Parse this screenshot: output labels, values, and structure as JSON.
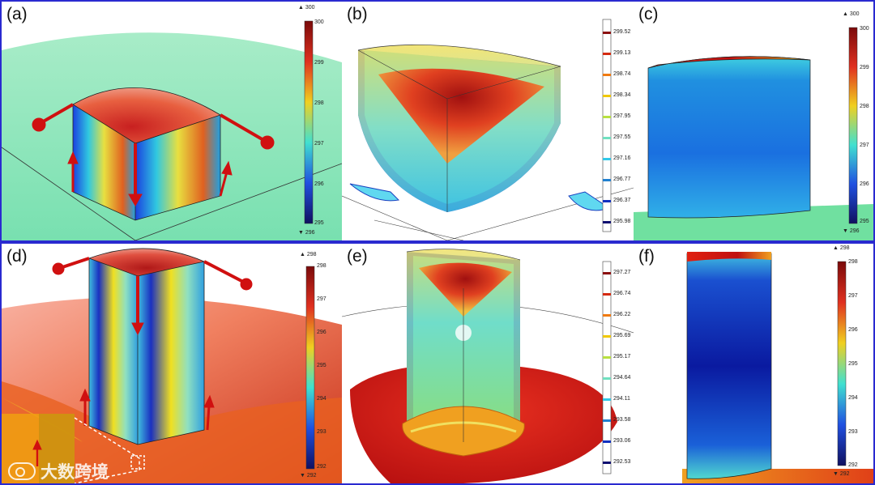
{
  "figure": {
    "panels": [
      {
        "id": "a",
        "label": "(a)",
        "colorbar": {
          "max_marker": "▲ 300",
          "min_marker": "▼ 296",
          "ticks": [
            "300",
            "299",
            "298",
            "297",
            "296",
            "295"
          ]
        }
      },
      {
        "id": "b",
        "label": "(b)",
        "colorbar": {
          "ticks": [
            "299.52",
            "299.13",
            "298.74",
            "298.34",
            "297.95",
            "297.55",
            "297.16",
            "296.77",
            "296.37",
            "295.98"
          ]
        }
      },
      {
        "id": "c",
        "label": "(c)",
        "colorbar": {
          "max_marker": "▲ 300",
          "min_marker": "▼ 296",
          "ticks": [
            "300",
            "299",
            "298",
            "297",
            "296",
            "295"
          ]
        }
      },
      {
        "id": "d",
        "label": "(d)",
        "colorbar": {
          "max_marker": "▲ 298",
          "min_marker": "▼ 292",
          "ticks": [
            "298",
            "297",
            "296",
            "295",
            "294",
            "293",
            "292"
          ]
        }
      },
      {
        "id": "e",
        "label": "(e)",
        "colorbar": {
          "ticks": [
            "297.27",
            "296.74",
            "296.22",
            "295.69",
            "295.17",
            "294.64",
            "294.11",
            "293.58",
            "293.06",
            "292.53"
          ]
        }
      },
      {
        "id": "f",
        "label": "(f)",
        "colorbar": {
          "max_marker": "▲ 298",
          "min_marker": "▼ 292",
          "ticks": [
            "298",
            "297",
            "296",
            "295",
            "294",
            "293",
            "292"
          ]
        }
      }
    ],
    "contour_colors": [
      "#8b1010",
      "#d42a10",
      "#f07a10",
      "#f0c800",
      "#b8e040",
      "#70e0c0",
      "#30c8e8",
      "#2080d0",
      "#1030c0",
      "#101070"
    ],
    "watermark": "大数跨境"
  }
}
